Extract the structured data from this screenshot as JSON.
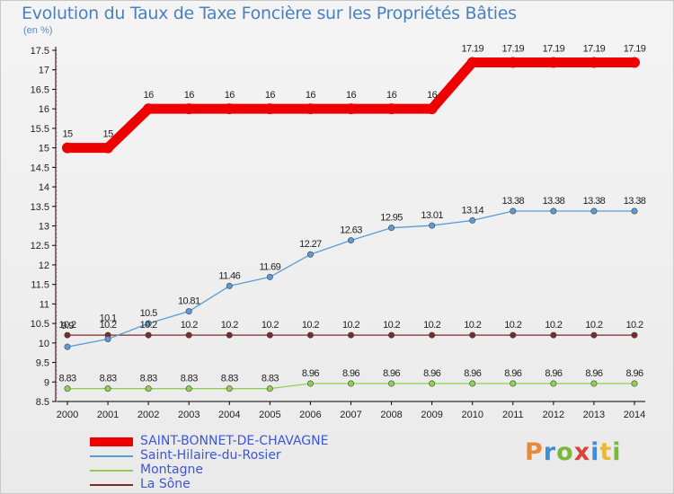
{
  "header": {
    "title": "Evolution du Taux de Taxe Foncière sur les Propriétés Bâties",
    "unit": "(en %)"
  },
  "logo": {
    "text": "Proxiti",
    "colors": [
      "#e8883a",
      "#3a8fd6",
      "#7ab83a",
      "#d6443a",
      "#3a8fd6",
      "#e8b83a",
      "#7ab83a"
    ]
  },
  "chart_data": {
    "type": "line",
    "title": "Evolution du Taux de Taxe Foncière sur les Propriétés Bâties",
    "ylabel": "(en %)",
    "xlabel": "",
    "x": [
      "2000",
      "2001",
      "2002",
      "2003",
      "2004",
      "2005",
      "2006",
      "2007",
      "2008",
      "2009",
      "2010",
      "2011",
      "2012",
      "2013",
      "2014"
    ],
    "ylim": [
      8.5,
      17.5
    ],
    "yticks": [
      "8.5",
      "9",
      "9.5",
      "10",
      "10.5",
      "11",
      "11.5",
      "12",
      "12.5",
      "13",
      "13.5",
      "14",
      "14.5",
      "15",
      "15.5",
      "16",
      "16.5",
      "17",
      "17.5"
    ],
    "grid": false,
    "legend_position": "bottom-left",
    "series": [
      {
        "name": "SAINT-BONNET-DE-CHAVAGNE",
        "color": "#ee0000",
        "values": [
          15,
          15,
          16,
          16,
          16,
          16,
          16,
          16,
          16,
          16,
          17.19,
          17.19,
          17.19,
          17.19,
          17.19
        ],
        "labels": [
          "15",
          "15",
          "16",
          "16",
          "16",
          "16",
          "16",
          "16",
          "16",
          "16",
          "17.19",
          "17.19",
          "17.19",
          "17.19",
          "17.19"
        ]
      },
      {
        "name": "Saint-Hilaire-du-Rosier",
        "color": "#5b9bd5",
        "values": [
          9.9,
          10.1,
          10.5,
          10.81,
          11.46,
          11.69,
          12.27,
          12.63,
          12.95,
          13.01,
          13.14,
          13.38,
          13.38,
          13.38,
          13.38
        ],
        "labels": [
          "9.9",
          "10.1",
          "10.5",
          "10.81",
          "11.46",
          "11.69",
          "12.27",
          "12.63",
          "12.95",
          "13.01",
          "13.14",
          "13.38",
          "13.38",
          "13.38",
          "13.38"
        ]
      },
      {
        "name": "Montagne",
        "color": "#8fd14f",
        "values": [
          8.83,
          8.83,
          8.83,
          8.83,
          8.83,
          8.83,
          8.96,
          8.96,
          8.96,
          8.96,
          8.96,
          8.96,
          8.96,
          8.96,
          8.96
        ],
        "labels": [
          "8.83",
          "8.83",
          "8.83",
          "8.83",
          "8.83",
          "8.83",
          "8.96",
          "8.96",
          "8.96",
          "8.96",
          "8.96",
          "8.96",
          "8.96",
          "8.96",
          "8.96"
        ]
      },
      {
        "name": "La Sône",
        "color": "#7a2a2a",
        "values": [
          10.2,
          10.2,
          10.2,
          10.2,
          10.2,
          10.2,
          10.2,
          10.2,
          10.2,
          10.2,
          10.2,
          10.2,
          10.2,
          10.2,
          10.2
        ],
        "labels": [
          "10.2",
          "10.2",
          "10.2",
          "10.2",
          "10.2",
          "10.2",
          "10.2",
          "10.2",
          "10.2",
          "10.2",
          "10.2",
          "10.2",
          "10.2",
          "10.2",
          "10.2"
        ]
      }
    ]
  }
}
